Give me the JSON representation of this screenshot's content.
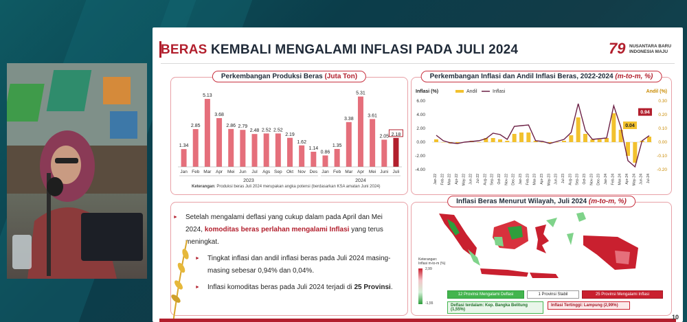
{
  "slide": {
    "title_accent": "BERAS",
    "title_rest": "KEMBALI MENGALAMI INFLASI PADA JULI 2024",
    "logo_mark": "79",
    "logo_text_1": "NUSANTARA BARU",
    "logo_text_2": "INDONESIA MAJU",
    "page_number": "10"
  },
  "production_chart": {
    "title": "Perkembangan Produksi Beras",
    "title_unit": "(Juta Ton)",
    "note_bold": "Keterangan",
    "note": ": Produksi beras Juli 2024 merupakan angka potensi (berdasarkan KSA amatan Juni 2024)",
    "year_labels": [
      "2023",
      "2024"
    ]
  },
  "inflation_chart": {
    "title": "Perkembangan Inflasi dan Andil Inflasi Beras, 2022-2024",
    "title_unit": "(m-to-m, %)",
    "left_axis_label": "Inflasi (%)",
    "right_axis_label": "Andil (%)",
    "legend_andil": "Andil",
    "legend_inflasi": "Inflasi",
    "label_inflasi": "0.94",
    "label_andil": "0.04"
  },
  "map_panel": {
    "title": "Inflasi Beras Menurut Wilayah, Juli 2024",
    "title_unit": "(m-to-m, %)",
    "legend_title": "Keterangan:",
    "legend_sub": "Inflasi m-to-m (%)",
    "legend_max": "2,99",
    "legend_min": "-1,55",
    "box_deflasi": "12 Provinsi Mengalami Deflasi",
    "box_stabil": "1 Provinsi Stabil",
    "box_inflasi": "25 Provinsi Mengalami Inflasi",
    "deflasi_terdalam": "Deflasi terdalam: Kep. Bangka Belitung (1,55%)",
    "inflasi_tertinggi": "Inflasi Tertinggi: Lampung (2,99%)"
  },
  "bullets": {
    "b1_pre": "Setelah mengalami deflasi yang cukup dalam pada April dan Mei 2024, ",
    "b1_strong": "komoditas beras perlahan mengalami Inflasi",
    "b1_post": " yang terus meningkat.",
    "b2": "Tingkat inflasi dan andil inflasi beras pada Juli 2024 masing-masing sebesar 0,94% dan 0,04%.",
    "b3_pre": "Inflasi komoditas beras pada Juli 2024 terjadi di ",
    "b3_bold": "25 Provinsi",
    "b3_post": "."
  },
  "colors": {
    "accent": "#b21f2d",
    "bar_light": "#e56f7b",
    "andil_yellow": "#f2c12e",
    "inflasi_purple": "#6b1f44"
  },
  "chart_data": [
    {
      "type": "bar",
      "title": "Perkembangan Produksi Beras (Juta Ton)",
      "categories": [
        "Jan",
        "Feb",
        "Mar",
        "Apr",
        "Mei",
        "Jun",
        "Jul",
        "Ags",
        "Sep",
        "Okt",
        "Nov",
        "Des",
        "Jan",
        "Feb",
        "Mar",
        "Apr",
        "Mei",
        "Juni",
        "Juli"
      ],
      "groups": [
        {
          "label": "2023",
          "from": 0,
          "to": 11
        },
        {
          "label": "2024",
          "from": 12,
          "to": 18
        }
      ],
      "values": [
        1.34,
        2.85,
        5.13,
        3.68,
        2.86,
        2.79,
        2.48,
        2.52,
        2.52,
        2.19,
        1.62,
        1.14,
        0.86,
        1.35,
        3.38,
        5.31,
        3.61,
        2.05,
        2.18
      ],
      "ylim": [
        0,
        5.6
      ]
    },
    {
      "type": "line",
      "title": "Perkembangan Inflasi dan Andil Inflasi Beras, 2022-2024 (m-to-m, %)",
      "x": [
        "Jan-22",
        "Feb-22",
        "Mar-22",
        "Apr-22",
        "May-22",
        "Jun-22",
        "Jul-22",
        "Aug-22",
        "Sep-22",
        "Oct-22",
        "Nov-22",
        "Dec-22",
        "Jan-23",
        "Feb-23",
        "Mar-23",
        "Apr-23",
        "May-23",
        "Jun-23",
        "Jul-23",
        "Aug-23",
        "Sep-23",
        "Oct-23",
        "Nov-23",
        "Dec-23",
        "Jan-24",
        "Feb-24",
        "Mar-24",
        "Apr-24",
        "May-24",
        "Jun-24",
        "Jul-24"
      ],
      "x_tick_labels": [
        "Jan-22",
        "Feb-22",
        "Mar-22",
        "Apr-22",
        "May-22",
        "Jun-22",
        "Jul-22",
        "Aug-22",
        "Sep-22",
        "Oct-22",
        "Nov-22",
        "Dec-22",
        "Jan-23",
        "Feb-23",
        "Mar-23",
        "Apr-23",
        "May-23",
        "Jun-23",
        "Jul-23",
        "Aug-23",
        "Sep-23",
        "Oct-23",
        "Nov-23",
        "Dec-23",
        "Jan-24",
        "Feb-24",
        "Mar-24",
        "Apr-24",
        "May-24",
        "Jun-24",
        "Jul-24"
      ],
      "series": [
        {
          "name": "Inflasi",
          "axis": "left",
          "values": [
            1.0,
            0.2,
            -0.1,
            -0.2,
            0.0,
            0.1,
            0.2,
            0.5,
            1.3,
            1.1,
            0.4,
            2.3,
            2.4,
            2.5,
            0.2,
            0.1,
            -0.2,
            0.1,
            0.4,
            1.4,
            5.6,
            1.7,
            0.4,
            0.5,
            0.6,
            5.3,
            2.2,
            -2.7,
            -3.6,
            0.2,
            0.94
          ]
        },
        {
          "name": "Andil",
          "axis": "right",
          "values": [
            0.02,
            0.0,
            -0.01,
            -0.01,
            0.0,
            0.01,
            0.0,
            0.03,
            0.03,
            0.02,
            0.01,
            0.06,
            0.07,
            0.07,
            0.01,
            0.0,
            -0.01,
            0.0,
            0.01,
            0.05,
            0.18,
            0.06,
            0.02,
            0.02,
            0.03,
            0.21,
            0.09,
            -0.1,
            -0.15,
            0.01,
            0.04
          ]
        }
      ],
      "left_ylim": [
        -4.0,
        6.0
      ],
      "left_ticks": [
        "6.00",
        "4.00",
        "2.00",
        "0.00",
        "-2.00",
        "-4.00"
      ],
      "right_ylim": [
        -0.2,
        0.3
      ],
      "right_ticks": [
        "0.30",
        "0.20",
        "0.10",
        "0.00",
        "-0.10",
        "-0.20"
      ]
    }
  ]
}
